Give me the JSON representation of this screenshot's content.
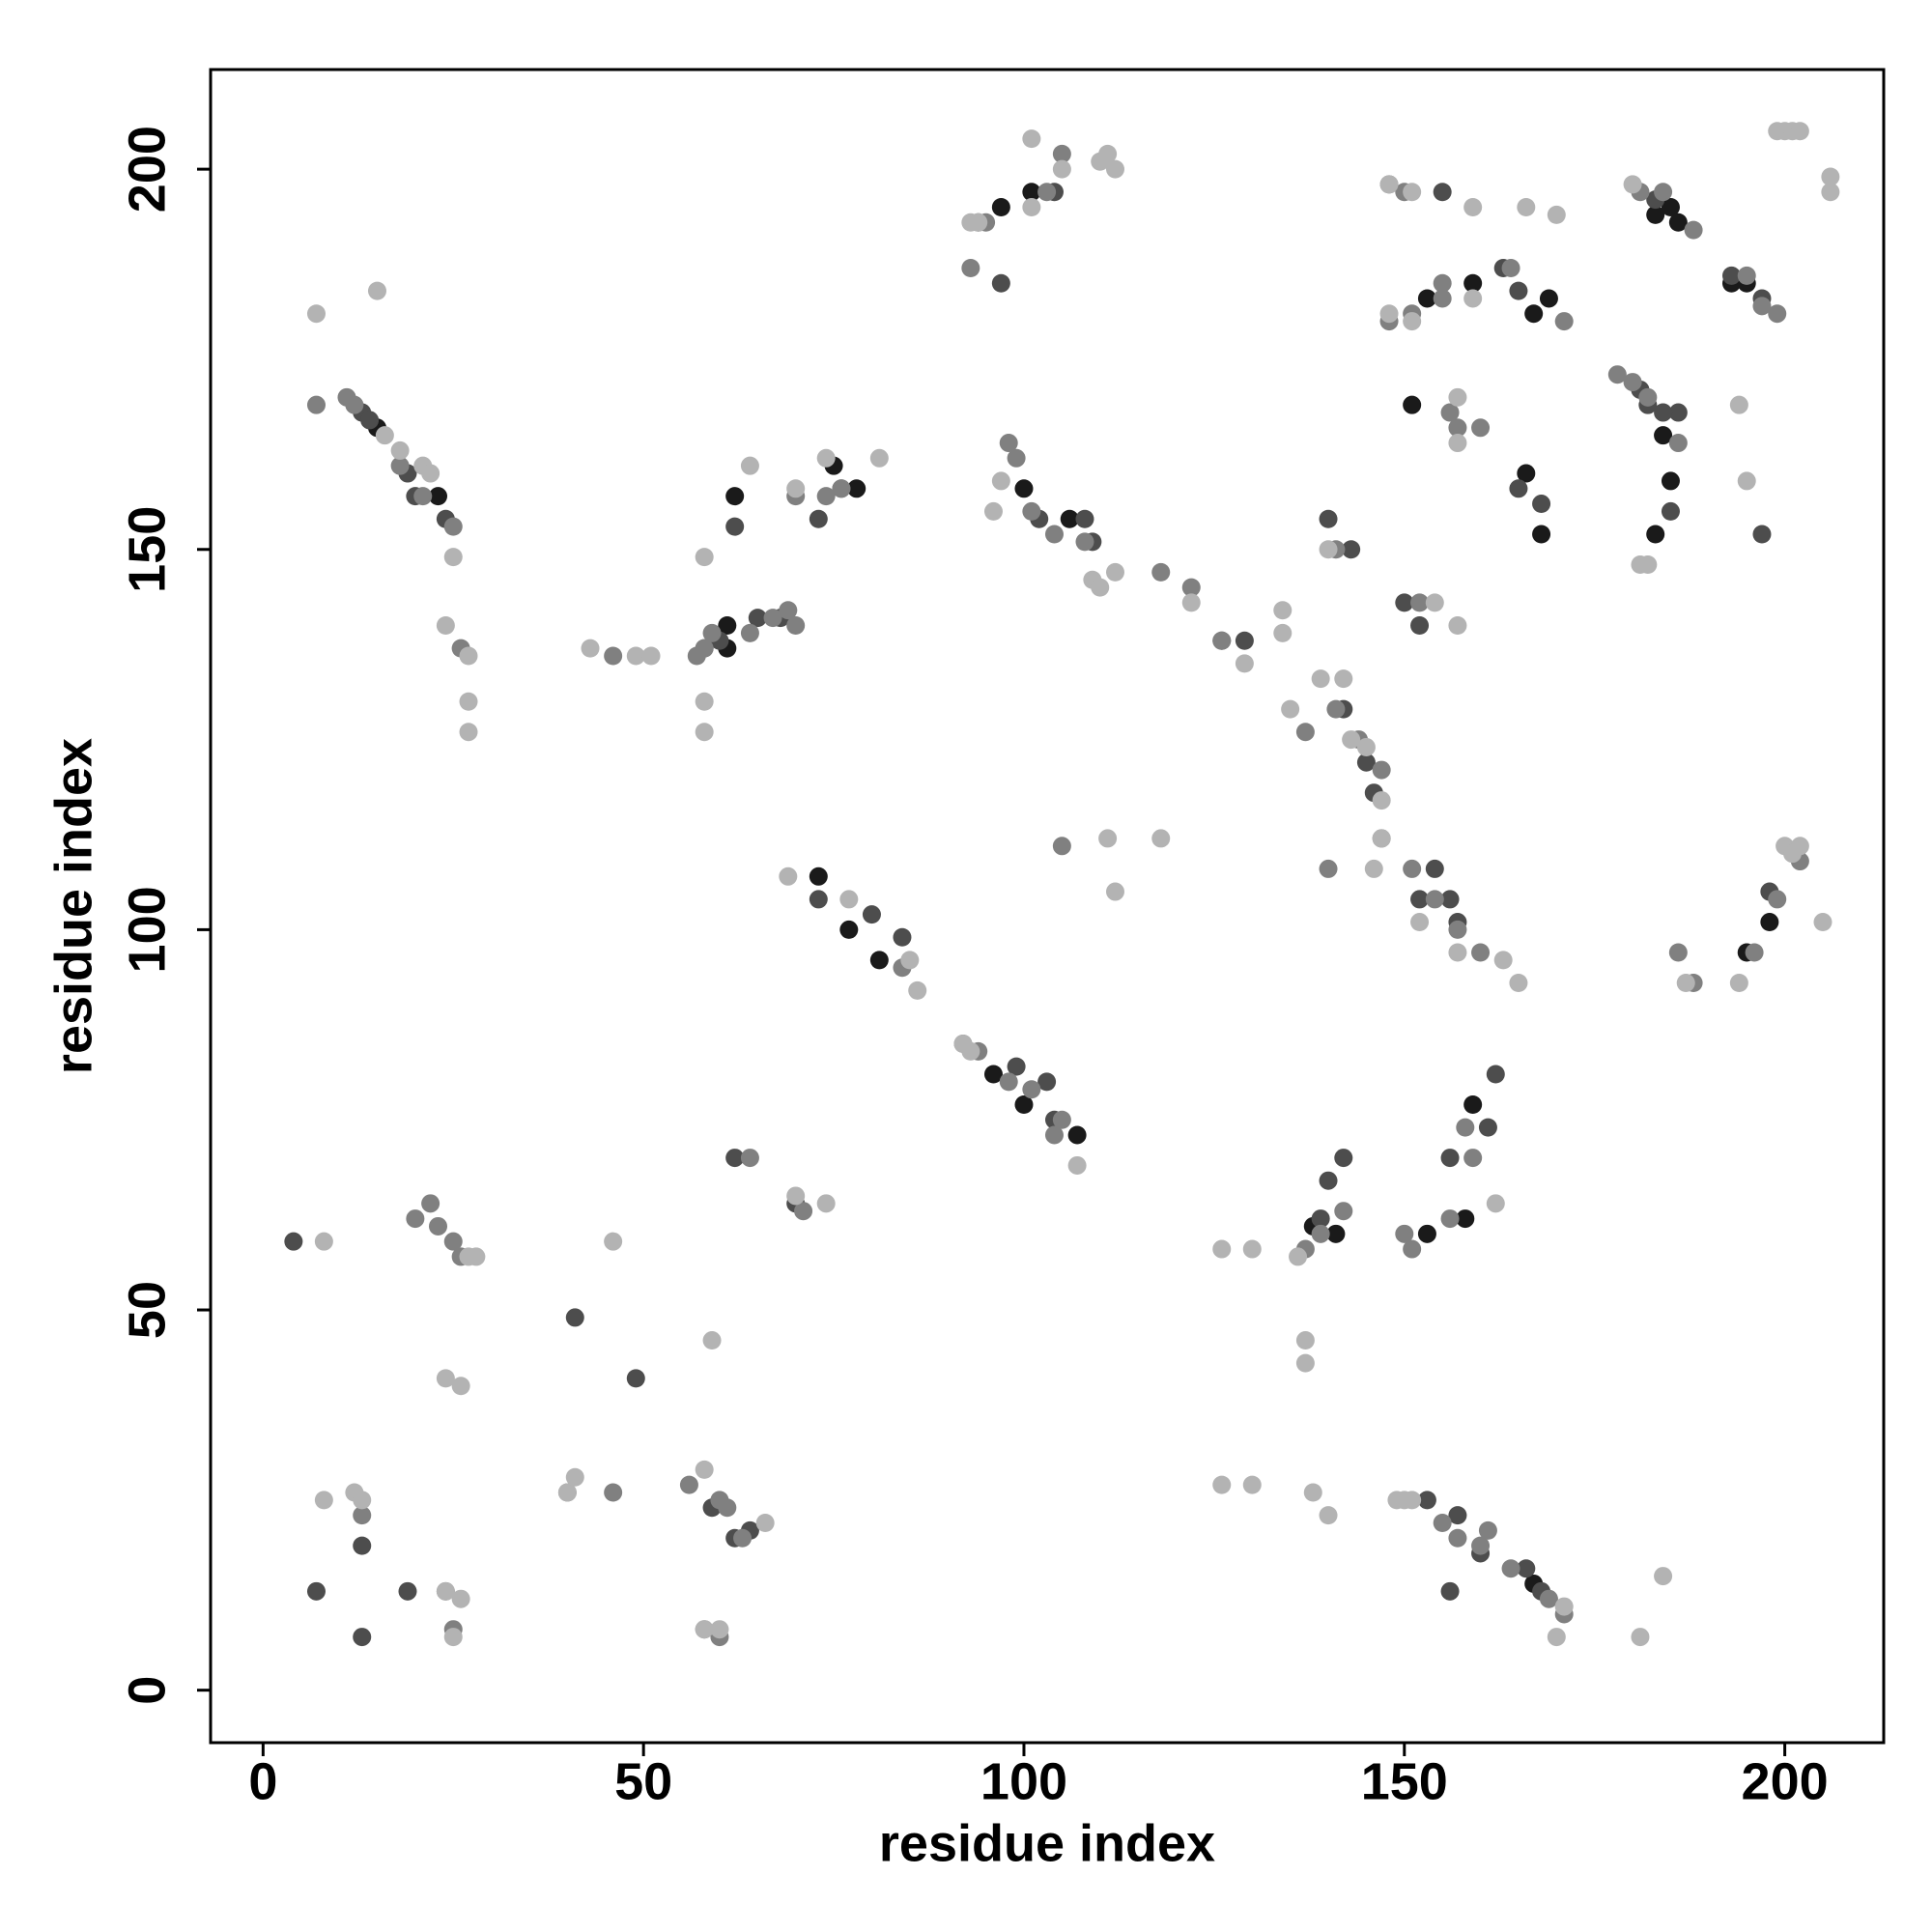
{
  "chart_data": {
    "type": "scatter",
    "x_label": "residue index",
    "y_label": "residue index",
    "xlim": [
      -6.9,
      213
    ],
    "ylim": [
      -6.9,
      213.1
    ],
    "xticks": [
      0,
      50,
      100,
      150,
      200
    ],
    "yticks": [
      0,
      50,
      100,
      150,
      200
    ],
    "grid": false,
    "series": [
      {
        "color": "#1a1a1a",
        "x": [
          15,
          23,
          62,
          61,
          61,
          75,
          78,
          97,
          101,
          100,
          106,
          153,
          159,
          151,
          166,
          168,
          167,
          169,
          185,
          186,
          183,
          193,
          195,
          184,
          185,
          183,
          198,
          195,
          73,
          77,
          81,
          96,
          100,
          107,
          153,
          158,
          159,
          138,
          141,
          167
        ],
        "values": [
          166,
          157,
          157,
          140,
          137,
          161,
          158,
          195,
          197,
          158,
          154,
          183,
          185,
          169,
          160,
          152,
          181,
          183,
          195,
          193,
          194,
          185,
          185,
          165,
          159,
          152,
          101,
          97,
          107,
          100,
          96,
          81,
          77,
          73,
          60,
          62,
          77,
          61,
          60,
          14
        ]
      },
      {
        "color": "#4d4d4d",
        "x": [
          13,
          14,
          20,
          24,
          19,
          62,
          60,
          58,
          65,
          68,
          73,
          76,
          94,
          97,
          104,
          102,
          108,
          109,
          129,
          126,
          142,
          145,
          146,
          140,
          143,
          150,
          155,
          152,
          165,
          168,
          163,
          165,
          183,
          181,
          186,
          193,
          197,
          185,
          182,
          184,
          197,
          198,
          73,
          80,
          84,
          99,
          103,
          104,
          152,
          156,
          154,
          157,
          140,
          142,
          139,
          156,
          161,
          162,
          41,
          49,
          4,
          7,
          19,
          13,
          13,
          59,
          62,
          64,
          157,
          160,
          166,
          168,
          153,
          156,
          62,
          70
        ],
        "values": [
          168,
          167,
          157,
          154,
          160,
          153,
          138,
          137,
          141,
          141,
          154,
          158,
          193,
          185,
          197,
          154,
          154,
          151,
          138,
          138,
          129,
          122,
          118,
          154,
          150,
          143,
          197,
          140,
          158,
          156,
          187,
          184,
          196,
          171,
          168,
          186,
          183,
          155,
          169,
          168,
          152,
          105,
          104,
          102,
          99,
          82,
          80,
          75,
          104,
          104,
          108,
          101,
          67,
          70,
          62,
          70,
          74,
          81,
          49,
          41,
          59,
          13,
          13,
          19,
          7,
          24,
          20,
          21,
          23,
          18,
          16,
          13,
          25,
          13,
          70,
          64
        ]
      },
      {
        "color": "#808080",
        "x": [
          7,
          11,
          12,
          18,
          21,
          25,
          26,
          46,
          58,
          57,
          59,
          64,
          67,
          69,
          70,
          74,
          93,
          95,
          99,
          103,
          105,
          98,
          101,
          104,
          108,
          105,
          118,
          122,
          126,
          137,
          141,
          144,
          147,
          141,
          148,
          150,
          152,
          155,
          148,
          151,
          155,
          156,
          157,
          160,
          164,
          171,
          181,
          184,
          188,
          180,
          182,
          195,
          197,
          199,
          178,
          186,
          70,
          76,
          84,
          92,
          94,
          98,
          101,
          104,
          105,
          140,
          147,
          151,
          154,
          157,
          160,
          186,
          188,
          196,
          199,
          202,
          150,
          151,
          156,
          159,
          158,
          137,
          139,
          142,
          64,
          71,
          20,
          22,
          23,
          25,
          26,
          13,
          24,
          25,
          40,
          46,
          56,
          60,
          61,
          63,
          155,
          157,
          160,
          161,
          164,
          169,
          171,
          58,
          60
        ],
        "values": [
          169,
          170,
          169,
          161,
          157,
          153,
          137,
          136,
          137,
          136,
          139,
          139,
          141,
          142,
          140,
          157,
          187,
          193,
          162,
          197,
          202,
          164,
          155,
          152,
          151,
          111,
          147,
          145,
          138,
          126,
          129,
          125,
          121,
          150,
          198,
          197,
          143,
          183,
          180,
          181,
          185,
          168,
          166,
          166,
          187,
          180,
          197,
          197,
          192,
          172,
          170,
          186,
          182,
          181,
          173,
          164,
          157,
          158,
          95,
          85,
          84,
          80,
          79,
          73,
          75,
          108,
          112,
          108,
          104,
          100,
          97,
          97,
          93,
          97,
          104,
          109,
          60,
          58,
          62,
          70,
          74,
          58,
          60,
          63,
          70,
          63,
          62,
          64,
          61,
          59,
          57,
          23,
          13,
          8,
          26,
          26,
          27,
          25,
          24,
          20,
          22,
          20,
          19,
          21,
          16,
          12,
          10,
          8,
          7
        ]
      },
      {
        "color": "#b3b3b3",
        "x": [
          7,
          15,
          16,
          18,
          21,
          22,
          25,
          24,
          27,
          27,
          27,
          43,
          49,
          51,
          58,
          58,
          58,
          64,
          70,
          74,
          81,
          93,
          94,
          101,
          105,
          110,
          112,
          111,
          96,
          97,
          101,
          109,
          110,
          112,
          122,
          129,
          134,
          134,
          135,
          139,
          142,
          143,
          145,
          147,
          140,
          148,
          151,
          154,
          157,
          159,
          166,
          170,
          148,
          151,
          157,
          159,
          157,
          180,
          181,
          182,
          194,
          195,
          199,
          200,
          201,
          202,
          206,
          206,
          69,
          77,
          85,
          86,
          92,
          93,
          107,
          112,
          111,
          118,
          147,
          146,
          152,
          157,
          163,
          165,
          187,
          194,
          200,
          201,
          202,
          205,
          162,
          126,
          130,
          136,
          137,
          137,
          70,
          74,
          8,
          27,
          28,
          24,
          26,
          59,
          46,
          8,
          12,
          13,
          24,
          26,
          25,
          40,
          41,
          58,
          66,
          126,
          130,
          138,
          140,
          149,
          150,
          171,
          170,
          181,
          184,
          60,
          58,
          151
        ],
        "values": [
          181,
          184,
          165,
          163,
          161,
          160,
          149,
          140,
          136,
          130,
          126,
          137,
          136,
          136,
          149,
          130,
          126,
          161,
          158,
          162,
          162,
          193,
          193,
          204,
          200,
          201,
          200,
          202,
          155,
          159,
          195,
          146,
          145,
          147,
          143,
          135,
          142,
          139,
          129,
          133,
          133,
          125,
          124,
          117,
          150,
          198,
          197,
          143,
          140,
          195,
          195,
          194,
          181,
          180,
          170,
          183,
          164,
          198,
          148,
          148,
          169,
          159,
          205,
          205,
          205,
          205,
          199,
          197,
          107,
          104,
          96,
          92,
          85,
          84,
          69,
          105,
          112,
          112,
          112,
          108,
          101,
          97,
          96,
          93,
          93,
          93,
          111,
          110,
          111,
          101,
          64,
          58,
          58,
          57,
          46,
          43,
          65,
          64,
          59,
          57,
          57,
          41,
          40,
          46,
          59,
          25,
          26,
          25,
          13,
          12,
          7,
          26,
          28,
          29,
          22,
          27,
          27,
          26,
          23,
          25,
          25,
          11,
          7,
          7,
          15,
          8,
          8,
          25
        ]
      }
    ]
  }
}
